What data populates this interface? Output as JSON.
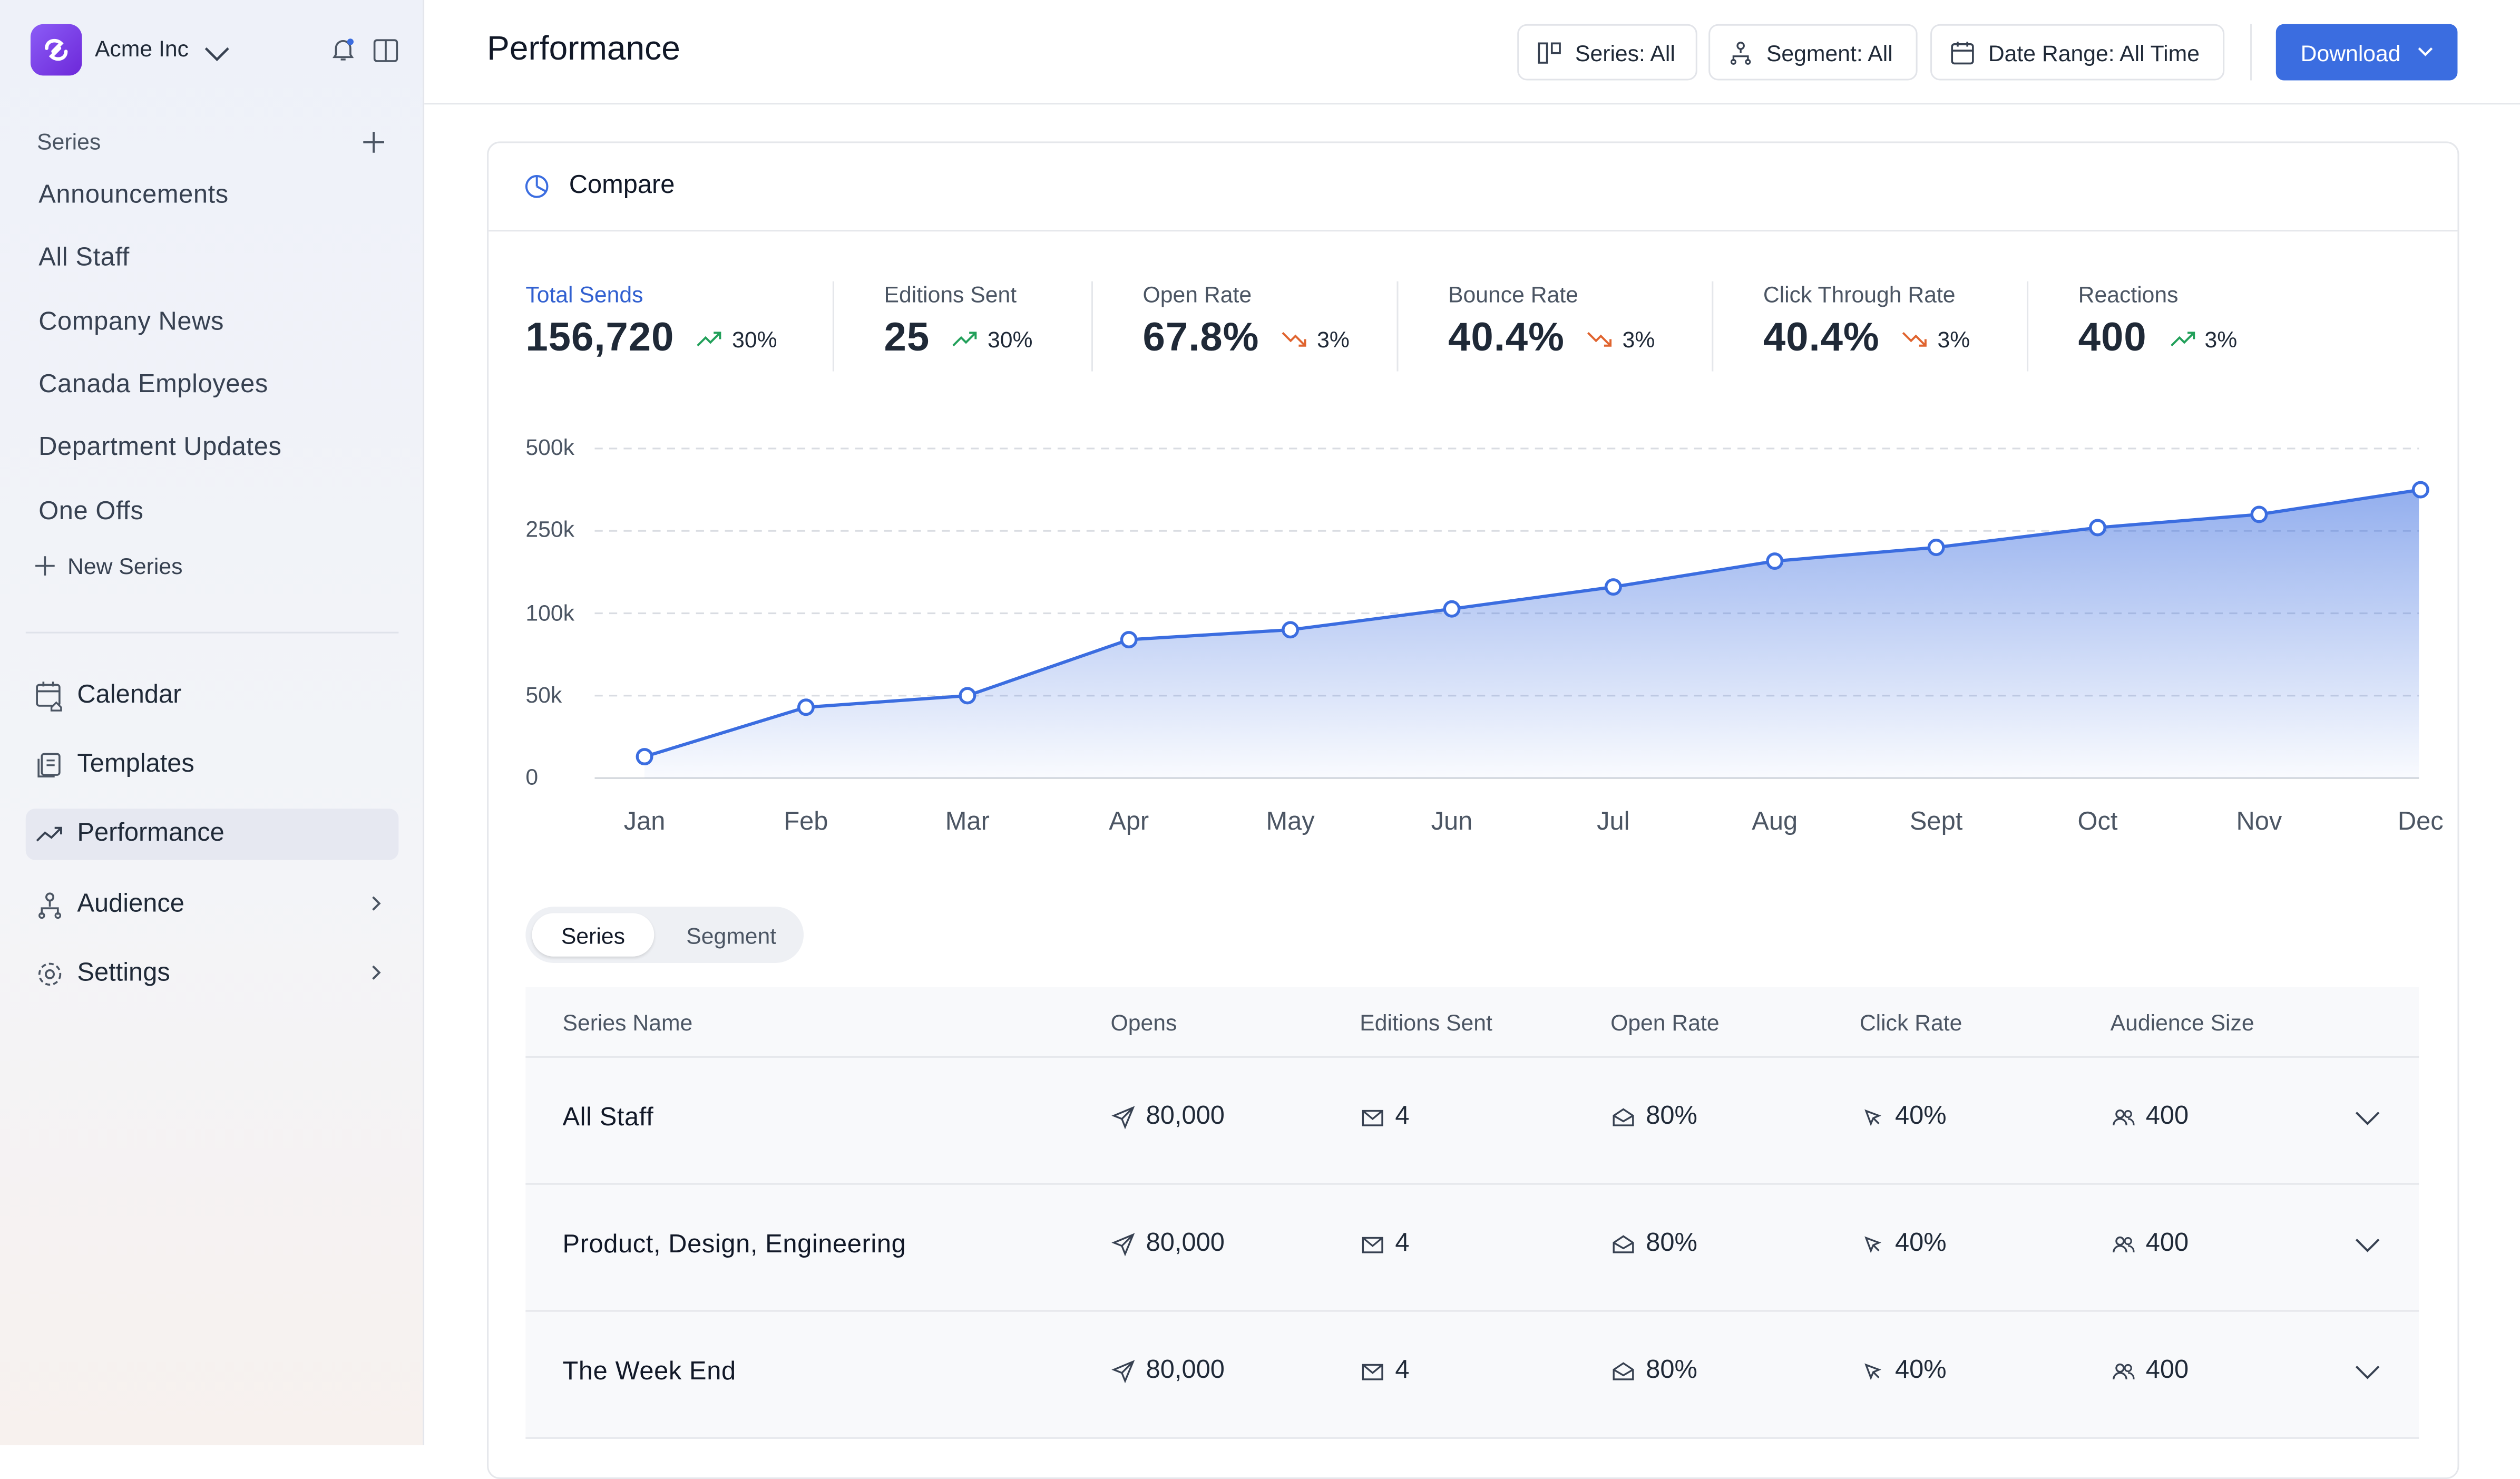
{
  "workspace": {
    "name": "Acme Inc"
  },
  "sidebar": {
    "series_label": "Series",
    "series": [
      "Announcements",
      "All Staff",
      "Company News",
      "Canada Employees",
      "Department Updates",
      "One Offs"
    ],
    "new_series_label": "New Series",
    "nav": [
      {
        "label": "Calendar",
        "icon": "calendar-icon"
      },
      {
        "label": "Templates",
        "icon": "templates-icon"
      },
      {
        "label": "Performance",
        "icon": "trending-icon",
        "active": true
      },
      {
        "label": "Audience",
        "icon": "audience-icon"
      },
      {
        "label": "Settings",
        "icon": "gear-icon"
      }
    ]
  },
  "header": {
    "title": "Performance",
    "filters": [
      "Series: All",
      "Segment: All",
      "Date Range: All Time"
    ],
    "download_label": "Download"
  },
  "compare": {
    "title": "Compare",
    "metrics": [
      {
        "label": "Total Sends",
        "value": "156,720",
        "change": "30%",
        "trend": "up"
      },
      {
        "label": "Editions Sent",
        "value": "25",
        "change": "30%",
        "trend": "up"
      },
      {
        "label": "Open Rate",
        "value": "67.8%",
        "change": "3%",
        "trend": "down"
      },
      {
        "label": "Bounce Rate",
        "value": "40.4%",
        "change": "3%",
        "trend": "down"
      },
      {
        "label": "Click Through Rate",
        "value": "40.4%",
        "change": "3%",
        "trend": "down"
      },
      {
        "label": "Reactions",
        "value": "400",
        "change": "3%",
        "trend": "up"
      }
    ]
  },
  "chart_data": {
    "type": "area",
    "categories": [
      "Jan",
      "Feb",
      "Mar",
      "Apr",
      "May",
      "Jun",
      "Jul",
      "Aug",
      "Sept",
      "Oct",
      "Nov",
      "Dec"
    ],
    "y_ticks": [
      "0",
      "50k",
      "100k",
      "250k",
      "500k"
    ],
    "y_tick_values": [
      0,
      50000,
      100000,
      250000,
      500000
    ],
    "y_scale": "categorical ticks (non-linear spacing)",
    "values": [
      13000,
      43000,
      50000,
      84000,
      90000,
      108000,
      148000,
      195000,
      220000,
      260000,
      300000,
      375000
    ],
    "grid": true,
    "color": "#3b6de0"
  },
  "tabs": {
    "items": [
      "Series",
      "Segment"
    ],
    "active": "Series"
  },
  "table": {
    "columns": [
      "Series Name",
      "Opens",
      "Editions Sent",
      "Open Rate",
      "Click Rate",
      "Audience Size"
    ],
    "rows": [
      {
        "name": "All Staff",
        "opens": "80,000",
        "editions": "4",
        "open_rate": "80%",
        "click_rate": "40%",
        "audience": "400"
      },
      {
        "name": "Product, Design, Engineering",
        "opens": "80,000",
        "editions": "4",
        "open_rate": "80%",
        "click_rate": "40%",
        "audience": "400"
      },
      {
        "name": "The Week End",
        "opens": "80,000",
        "editions": "4",
        "open_rate": "80%",
        "click_rate": "40%",
        "audience": "400"
      }
    ]
  },
  "colors": {
    "accent": "#3b6de0",
    "up": "#22a05a",
    "down": "#e0642f",
    "brand": "#7c3aed"
  }
}
